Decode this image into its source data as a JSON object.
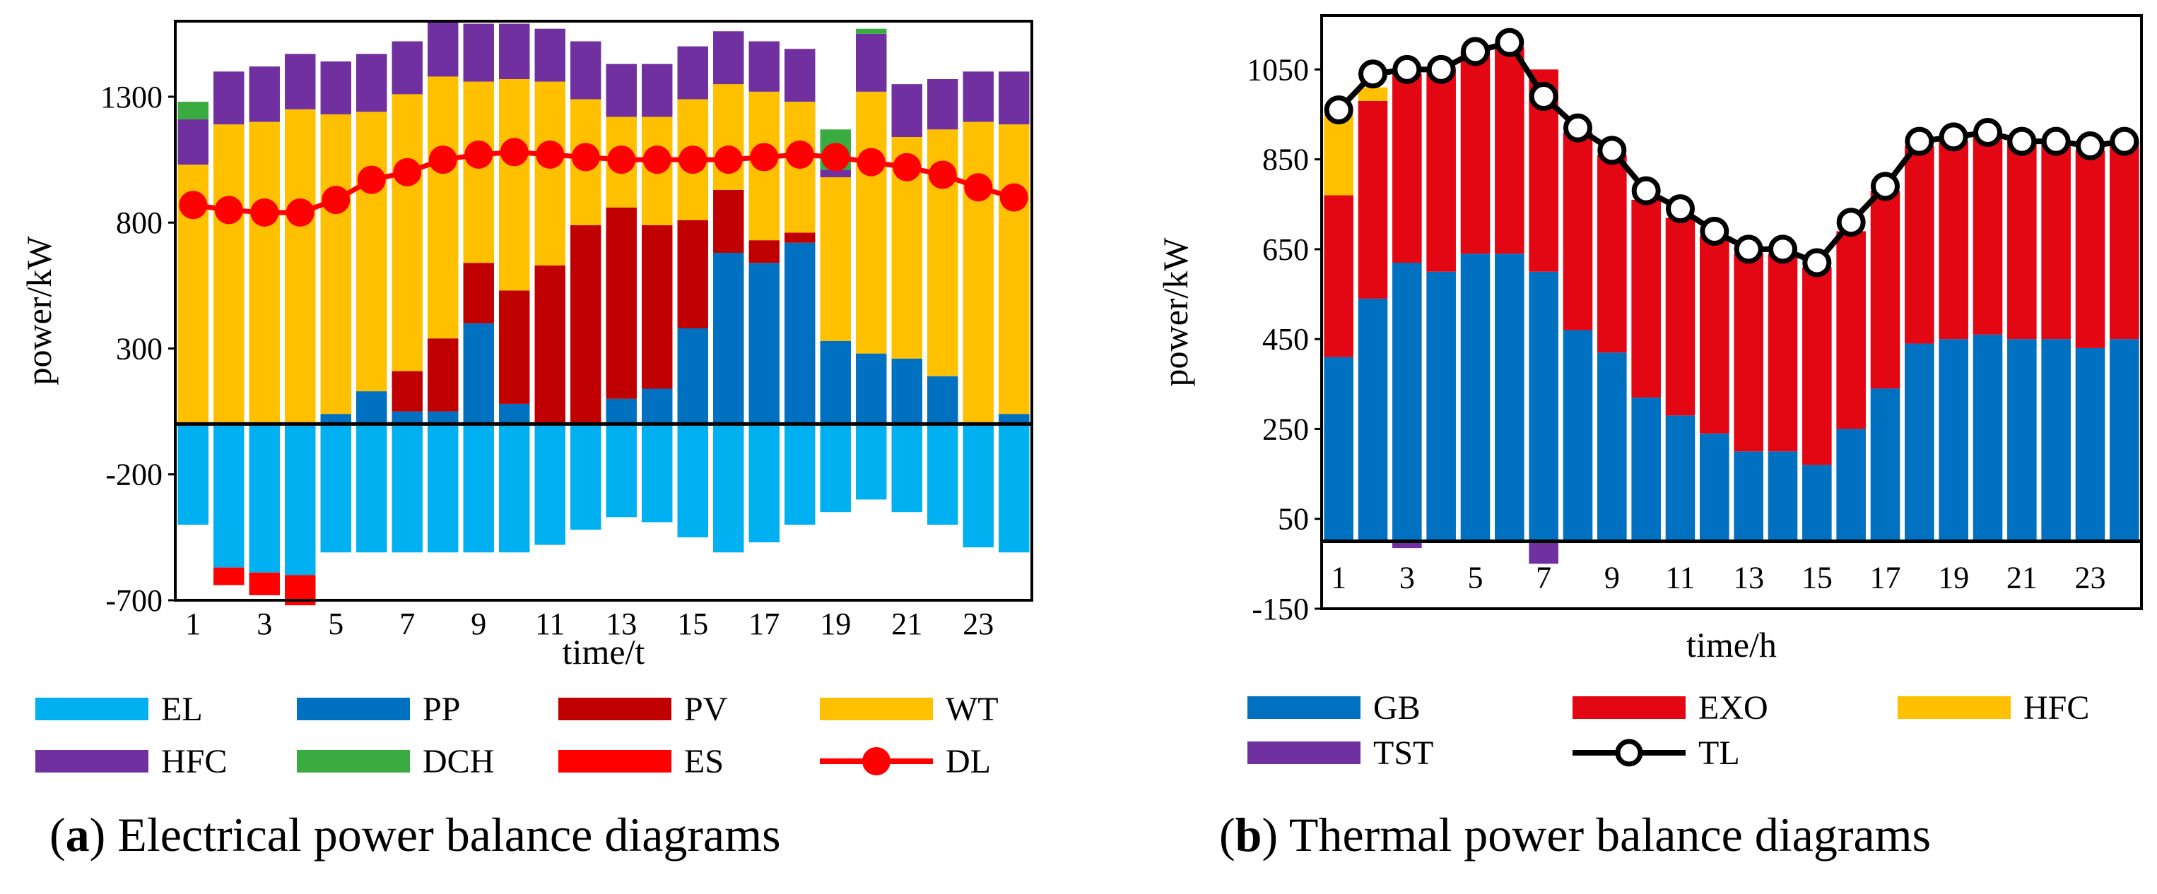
{
  "chart_data": [
    {
      "id": "a",
      "type": "bar",
      "stacked": true,
      "caption_label": "a",
      "caption_text": "Electrical power balance diagrams",
      "xlabel": "time/t",
      "ylabel": "power/kW",
      "ylim": [
        -700,
        1600
      ],
      "yticks": [
        -700,
        -200,
        300,
        800,
        1300
      ],
      "yticklabels": [
        "-700",
        "-200",
        "300",
        "800",
        "1300"
      ],
      "categories": [
        1,
        2,
        3,
        4,
        5,
        6,
        7,
        8,
        9,
        10,
        11,
        12,
        13,
        14,
        15,
        16,
        17,
        18,
        19,
        20,
        21,
        22,
        23,
        24
      ],
      "xticklabels": [
        "1",
        "3",
        "5",
        "7",
        "9",
        "11",
        "13",
        "15",
        "17",
        "19",
        "21",
        "23"
      ],
      "colors": {
        "EL": "#00b0f0",
        "PP": "#0070c0",
        "PV": "#c00000",
        "WT": "#ffc000",
        "HFC": "#7030a0",
        "DCH": "#3aab40",
        "ES": "#ff0000",
        "DL": "#ff0000"
      },
      "legend": [
        "EL",
        "PP",
        "PV",
        "WT",
        "HFC",
        "DCH",
        "ES",
        "DL"
      ],
      "series": [
        {
          "name": "PP",
          "values": [
            0,
            0,
            0,
            0,
            40,
            130,
            50,
            50,
            400,
            80,
            0,
            0,
            100,
            140,
            380,
            680,
            640,
            720,
            330,
            280,
            260,
            190,
            0,
            40
          ]
        },
        {
          "name": "PV",
          "values": [
            0,
            0,
            0,
            0,
            0,
            0,
            160,
            290,
            240,
            450,
            630,
            790,
            760,
            650,
            430,
            250,
            90,
            40,
            0,
            0,
            0,
            0,
            0,
            0
          ]
        },
        {
          "name": "WT",
          "values": [
            1030,
            1190,
            1200,
            1250,
            1190,
            1110,
            1100,
            1040,
            720,
            840,
            730,
            500,
            360,
            430,
            480,
            420,
            590,
            520,
            650,
            1040,
            880,
            980,
            1200,
            1150
          ]
        },
        {
          "name": "HFC",
          "values": [
            180,
            210,
            220,
            220,
            210,
            230,
            210,
            220,
            230,
            220,
            210,
            230,
            210,
            210,
            210,
            210,
            200,
            210,
            30,
            230,
            210,
            200,
            200,
            210
          ]
        },
        {
          "name": "DCH",
          "values": [
            70,
            0,
            0,
            0,
            0,
            0,
            0,
            0,
            0,
            0,
            0,
            0,
            0,
            0,
            0,
            0,
            0,
            0,
            160,
            20,
            0,
            0,
            0,
            0
          ]
        },
        {
          "name": "EL",
          "values": [
            -400,
            -570,
            -590,
            -600,
            -510,
            -510,
            -510,
            -510,
            -510,
            -510,
            -480,
            -420,
            -370,
            -390,
            -450,
            -510,
            -470,
            -400,
            -350,
            -300,
            -350,
            -400,
            -490,
            -510
          ]
        },
        {
          "name": "ES",
          "values": [
            0,
            -70,
            -90,
            -120,
            0,
            0,
            0,
            0,
            0,
            0,
            0,
            0,
            0,
            0,
            0,
            0,
            0,
            0,
            0,
            0,
            0,
            0,
            0,
            0
          ]
        }
      ],
      "line": {
        "name": "DL",
        "values": [
          870,
          850,
          840,
          840,
          890,
          970,
          1000,
          1050,
          1070,
          1080,
          1070,
          1060,
          1050,
          1050,
          1050,
          1050,
          1060,
          1070,
          1060,
          1040,
          1020,
          990,
          940,
          900
        ]
      }
    },
    {
      "id": "b",
      "type": "bar",
      "stacked": true,
      "caption_label": "b",
      "caption_text": "Thermal power balance diagrams",
      "xlabel": "time/h",
      "ylabel": "power/kW",
      "ylim": [
        -150,
        1170
      ],
      "yticks": [
        -150,
        50,
        250,
        450,
        650,
        850,
        1050
      ],
      "yticklabels": [
        "-150",
        "50",
        "250",
        "450",
        "650",
        "850",
        "1050"
      ],
      "categories": [
        1,
        2,
        3,
        4,
        5,
        6,
        7,
        8,
        9,
        10,
        11,
        12,
        13,
        14,
        15,
        16,
        17,
        18,
        19,
        20,
        21,
        22,
        23,
        24
      ],
      "xticklabels": [
        "1",
        "3",
        "5",
        "7",
        "9",
        "11",
        "13",
        "15",
        "17",
        "19",
        "21",
        "23"
      ],
      "colors": {
        "GB": "#0070c0",
        "EXO": "#e30613",
        "HFC": "#ffc000",
        "TST": "#7030a0",
        "TL": "#000000"
      },
      "legend": [
        "GB",
        "EXO",
        "HFC",
        "TST",
        "TL"
      ],
      "series": [
        {
          "name": "GB",
          "values": [
            410,
            540,
            620,
            600,
            640,
            640,
            600,
            470,
            420,
            320,
            280,
            240,
            200,
            200,
            170,
            250,
            340,
            440,
            450,
            460,
            450,
            450,
            430,
            450
          ]
        },
        {
          "name": "EXO",
          "values": [
            360,
            440,
            420,
            450,
            450,
            460,
            450,
            440,
            440,
            440,
            440,
            440,
            440,
            440,
            440,
            440,
            440,
            440,
            440,
            440,
            440,
            440,
            440,
            440
          ]
        },
        {
          "name": "HFC",
          "values": [
            180,
            30,
            0,
            0,
            0,
            0,
            0,
            0,
            0,
            0,
            0,
            0,
            0,
            0,
            0,
            0,
            0,
            0,
            0,
            0,
            0,
            0,
            0,
            0
          ]
        },
        {
          "name": "TST",
          "values": [
            0,
            0,
            -15,
            0,
            0,
            0,
            -50,
            0,
            0,
            0,
            0,
            0,
            0,
            0,
            0,
            0,
            0,
            0,
            0,
            0,
            0,
            0,
            0,
            0
          ]
        }
      ],
      "line": {
        "name": "TL",
        "values": [
          960,
          1040,
          1050,
          1050,
          1090,
          1110,
          990,
          920,
          870,
          780,
          740,
          690,
          650,
          650,
          620,
          710,
          790,
          890,
          900,
          910,
          890,
          890,
          880,
          890
        ]
      }
    }
  ]
}
